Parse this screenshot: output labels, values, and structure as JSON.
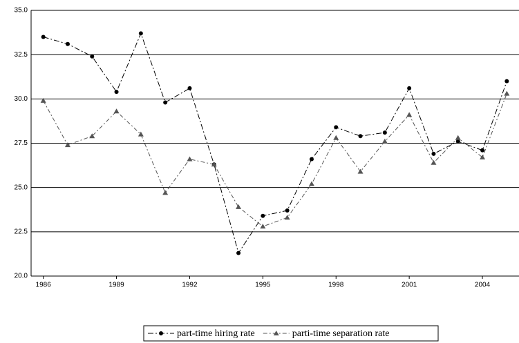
{
  "chart_data": {
    "type": "line",
    "categories": [
      "1986",
      null,
      null,
      "1989",
      null,
      null,
      "1992",
      null,
      null,
      "1995",
      null,
      null,
      "1998",
      null,
      null,
      "2001",
      null,
      null,
      "2004",
      null
    ],
    "series": [
      {
        "name": "part-time hiring rate",
        "color": "#000000",
        "marker": "circle",
        "values": [
          33.5,
          33.1,
          32.4,
          30.4,
          33.7,
          29.8,
          30.6,
          26.3,
          21.3,
          23.4,
          23.7,
          26.6,
          28.4,
          27.9,
          28.1,
          30.6,
          26.9,
          27.6,
          27.1,
          31.0
        ]
      },
      {
        "name": "parti-time separation rate",
        "color": "#555555",
        "marker": "triangle",
        "values": [
          29.9,
          27.4,
          27.9,
          29.3,
          28.0,
          24.7,
          26.6,
          26.3,
          23.9,
          22.8,
          23.3,
          25.2,
          27.8,
          25.9,
          27.6,
          29.1,
          26.4,
          27.8,
          26.7,
          30.3
        ]
      }
    ],
    "ylim": [
      20,
      35
    ],
    "yticks": [
      {
        "value": 20,
        "label": "20.0"
      },
      {
        "value": 22.5,
        "label": "22.5"
      },
      {
        "value": 25,
        "label": "25.0"
      },
      {
        "value": 27.5,
        "label": "27.5"
      },
      {
        "value": 30,
        "label": "30.0"
      },
      {
        "value": 32.5,
        "label": "32.5"
      },
      {
        "value": 35,
        "label": "35.0"
      }
    ],
    "grid": true,
    "legend": "bottom"
  }
}
